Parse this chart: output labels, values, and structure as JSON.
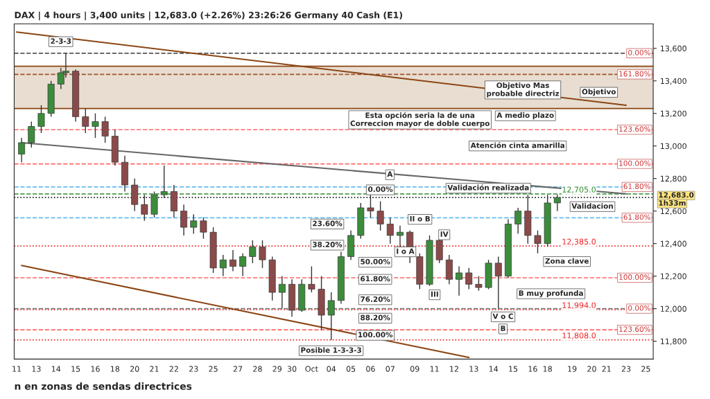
{
  "chart_data": {
    "type": "candlestick",
    "title": "DAX | 4 hours | 3,400 units | 12,683.0 (+2.26%) 23:26:26 Germany 40 Cash (E1)",
    "categories": [
      "11",
      null,
      null,
      null,
      "13",
      null,
      null,
      null,
      "14",
      null,
      null,
      null,
      "15",
      null,
      null,
      null,
      "16",
      null,
      null,
      null,
      "18",
      null,
      null,
      null,
      "20",
      null,
      null,
      null,
      "21",
      null,
      null,
      null,
      "22",
      null,
      null,
      null,
      "23",
      null,
      null,
      null,
      "25",
      null,
      null,
      null,
      null,
      "27",
      null,
      null,
      null,
      "28",
      null,
      null,
      null,
      "29",
      null,
      null,
      "30",
      null,
      null,
      null,
      "Oct",
      null,
      null,
      null,
      "04",
      null,
      null,
      null,
      "05",
      null,
      null,
      null,
      "06",
      null,
      null,
      null,
      "07",
      null,
      null,
      null,
      null,
      "09",
      null,
      null,
      null,
      "11",
      null,
      null,
      null,
      "12",
      null,
      null,
      null,
      "13",
      null,
      null,
      null,
      "14",
      null,
      null,
      null,
      "15",
      null,
      null,
      null,
      "16",
      null,
      null,
      "18",
      null,
      null,
      null,
      null,
      "19",
      null,
      null,
      null,
      "20",
      null,
      null,
      "21",
      null,
      null,
      null,
      "23",
      null,
      null,
      null,
      "25",
      null
    ],
    "ohlc": [
      null,
      [
        12950,
        13050,
        12900,
        13020
      ],
      null,
      [
        13020,
        13150,
        12990,
        13120
      ],
      null,
      [
        13120,
        13250,
        13080,
        13200
      ],
      null,
      [
        13200,
        13400,
        13180,
        13380
      ],
      null,
      [
        13380,
        13480,
        13350,
        13450
      ],
      [
        13450,
        13570,
        13420,
        13460
      ],
      null,
      [
        13460,
        13470,
        13150,
        13180
      ],
      null,
      [
        13180,
        13230,
        13080,
        13120
      ],
      null,
      [
        13120,
        13200,
        13050,
        13150
      ],
      null,
      [
        13150,
        13180,
        13020,
        13060
      ],
      null,
      [
        13060,
        13100,
        12880,
        12900
      ],
      null,
      [
        12900,
        12940,
        12720,
        12760
      ],
      null,
      [
        12760,
        12800,
        12600,
        12640
      ],
      null,
      [
        12640,
        12700,
        12540,
        12580
      ],
      null,
      [
        12580,
        12720,
        12560,
        12700
      ],
      null,
      [
        12700,
        12880,
        12680,
        12720
      ],
      null,
      [
        12720,
        12760,
        12560,
        12600
      ],
      null,
      [
        12600,
        12640,
        12450,
        12500
      ],
      null,
      [
        12500,
        12580,
        12460,
        12540
      ],
      null,
      [
        12540,
        12560,
        12430,
        12470
      ],
      null,
      [
        12470,
        12500,
        12220,
        12250
      ],
      null,
      [
        12250,
        12330,
        12200,
        12300
      ],
      null,
      [
        12300,
        12360,
        12230,
        12260
      ],
      null,
      [
        12260,
        12340,
        12200,
        12320
      ],
      null,
      [
        12320,
        12420,
        12280,
        12380
      ],
      null,
      [
        12380,
        12420,
        12250,
        12300
      ],
      null,
      [
        12300,
        12320,
        12050,
        12100
      ],
      null,
      [
        12100,
        12200,
        12000,
        12150
      ],
      null,
      [
        12150,
        12180,
        11950,
        11990
      ],
      null,
      [
        11990,
        12180,
        11980,
        12150
      ],
      null,
      [
        12150,
        12260,
        12100,
        12120
      ],
      null,
      [
        12120,
        12200,
        11870,
        11960
      ],
      null,
      [
        11960,
        12100,
        11808,
        12050
      ],
      null,
      [
        12050,
        12350,
        12030,
        12320
      ],
      null,
      [
        12320,
        12480,
        12300,
        12450
      ],
      null,
      [
        12450,
        12650,
        12430,
        12620
      ],
      null,
      [
        12620,
        12705,
        12560,
        12600
      ],
      null,
      [
        12600,
        12660,
        12480,
        12520
      ],
      null,
      [
        12520,
        12560,
        12400,
        12450
      ],
      null,
      [
        12450,
        12510,
        12380,
        12470
      ],
      null,
      [
        12470,
        12480,
        12280,
        12320
      ],
      null,
      [
        12320,
        12340,
        12120,
        12150
      ],
      null,
      [
        12150,
        12450,
        12140,
        12420
      ],
      null,
      [
        12420,
        12450,
        12280,
        12300
      ],
      null,
      [
        12300,
        12330,
        12150,
        12180
      ],
      null,
      [
        12180,
        12260,
        12080,
        12220
      ],
      null,
      [
        12220,
        12250,
        12120,
        12150
      ],
      null,
      [
        12150,
        12200,
        12110,
        12130
      ],
      null,
      [
        12130,
        12300,
        12120,
        12280
      ],
      null,
      [
        12280,
        12320,
        12000,
        12200
      ],
      null,
      [
        12200,
        12550,
        12190,
        12520
      ],
      null,
      [
        12520,
        12620,
        12460,
        12600
      ],
      null,
      [
        12600,
        12700,
        12400,
        12450
      ],
      null,
      [
        12450,
        12480,
        12340,
        12400
      ],
      null,
      [
        12400,
        12700,
        12380,
        12650
      ],
      null,
      [
        12650,
        12700,
        12600,
        12683
      ],
      null,
      null,
      null,
      null,
      null,
      null,
      null,
      null,
      null,
      null,
      null,
      null,
      null,
      null,
      null,
      null,
      null,
      null,
      null
    ],
    "colors": [
      null,
      "#3c8c3c",
      null,
      "#3c8c3c",
      null,
      "#3c8c3c",
      null,
      "#3c8c3c",
      null,
      "#3c8c3c",
      "#3c8c3c",
      null,
      "#8b4a4a",
      null,
      "#8b4a4a",
      null,
      "#3c8c3c",
      null,
      "#8b4a4a",
      null,
      "#8b4a4a",
      null,
      "#8b4a4a",
      null,
      "#8b4a4a",
      null,
      "#8b4a4a",
      null,
      "#3c8c3c",
      null,
      "#3c8c3c",
      null,
      "#8b4a4a",
      null,
      "#8b4a4a",
      null,
      "#3c8c3c",
      null,
      "#8b4a4a",
      null,
      "#8b4a4a",
      null,
      "#3c8c3c",
      null,
      "#8b4a4a",
      null,
      "#3c8c3c",
      null,
      "#3c8c3c",
      null,
      "#8b4a4a",
      null,
      "#8b4a4a",
      null,
      "#3c8c3c",
      null,
      "#8b4a4a",
      null,
      "#3c8c3c",
      null,
      "#8b4a4a",
      null,
      "#8b4a4a",
      null,
      "#3c8c3c",
      null,
      "#3c8c3c",
      null,
      "#3c8c3c",
      null,
      "#3c8c3c",
      null,
      "#8b4a4a",
      null,
      "#8b4a4a",
      null,
      "#8b4a4a",
      null,
      "#3c8c3c",
      null,
      "#8b4a4a",
      null,
      "#8b4a4a",
      null,
      "#3c8c3c",
      null,
      "#8b4a4a",
      null,
      "#8b4a4a",
      null,
      "#3c8c3c",
      null,
      "#8b4a4a",
      null,
      "#8b4a4a",
      null,
      "#3c8c3c",
      null,
      "#8b4a4a",
      null,
      "#3c8c3c",
      null,
      "#3c8c3c",
      null,
      "#8b4a4a",
      null,
      "#8b4a4a",
      null,
      "#3c8c3c",
      null,
      "#3c8c3c",
      null,
      null,
      null,
      null,
      null,
      null,
      null,
      null,
      null,
      null,
      null,
      null,
      null,
      null,
      null,
      null,
      null,
      null,
      null
    ],
    "series": [
      {
        "type": "line",
        "color": "#8b4513",
        "values": [
          13700,
          null,
          null,
          null,
          null,
          null,
          null,
          null,
          null,
          null,
          null,
          null,
          null,
          null,
          null,
          null,
          null,
          null,
          null,
          null,
          null,
          null,
          null,
          null,
          null,
          null,
          null,
          null,
          null,
          null,
          null,
          null,
          null,
          null,
          null,
          null,
          null,
          null,
          null,
          null,
          null,
          null,
          null,
          null,
          null,
          null,
          null,
          null,
          null,
          null,
          null,
          null,
          null,
          null,
          null,
          null,
          null,
          null,
          null,
          null,
          null,
          null,
          null,
          null,
          null,
          null,
          null,
          null,
          null,
          null,
          null,
          null,
          null,
          null,
          null,
          null,
          null,
          null,
          null,
          null,
          null,
          null,
          null,
          null,
          null,
          null,
          null,
          null,
          null,
          null,
          null,
          null,
          null,
          null,
          null,
          null,
          null,
          null,
          null,
          null,
          null,
          null,
          null,
          null,
          null,
          null,
          null,
          null,
          null,
          null,
          null,
          null,
          null,
          null,
          null,
          null,
          null,
          null,
          null,
          null,
          null,
          null,
          null,
          null,
          13250,
          null,
          null,
          null,
          null,
          null
        ]
      },
      {
        "type": "line",
        "color": "#8b4513",
        "values": [
          null,
          12265,
          null,
          null,
          null,
          null,
          null,
          null,
          null,
          null,
          null,
          null,
          null,
          null,
          null,
          null,
          null,
          null,
          null,
          null,
          null,
          null,
          null,
          null,
          null,
          null,
          null,
          null,
          null,
          null,
          null,
          null,
          null,
          null,
          null,
          null,
          null,
          null,
          null,
          null,
          null,
          null,
          null,
          null,
          null,
          null,
          null,
          null,
          null,
          null,
          null,
          null,
          null,
          null,
          null,
          null,
          null,
          null,
          null,
          null,
          null,
          null,
          null,
          null,
          null,
          null,
          null,
          null,
          null,
          null,
          null,
          null,
          null,
          null,
          null,
          null,
          null,
          null,
          null,
          null,
          null,
          null,
          null,
          null,
          null,
          null,
          null,
          null,
          null,
          null,
          null,
          null,
          11700,
          null,
          null,
          null,
          null,
          null,
          null,
          null,
          null,
          null,
          null,
          null,
          null,
          null,
          null,
          null,
          null,
          null,
          null,
          null,
          null,
          null,
          null,
          null,
          null,
          null,
          null,
          null,
          null,
          null,
          null,
          null,
          null,
          null,
          null,
          null,
          null,
          null
        ]
      },
      {
        "type": "line",
        "color": "#666666",
        "values": [
          null,
          13020,
          null,
          null,
          null,
          null,
          null,
          null,
          null,
          null,
          null,
          null,
          null,
          null,
          null,
          null,
          null,
          null,
          null,
          null,
          null,
          null,
          null,
          null,
          null,
          null,
          null,
          null,
          null,
          null,
          null,
          null,
          null,
          null,
          null,
          null,
          null,
          null,
          null,
          null,
          null,
          null,
          null,
          null,
          null,
          null,
          null,
          null,
          null,
          null,
          null,
          null,
          null,
          null,
          null,
          null,
          null,
          null,
          null,
          null,
          null,
          null,
          null,
          null,
          null,
          null,
          null,
          null,
          null,
          null,
          null,
          null,
          null,
          null,
          null,
          null,
          null,
          null,
          null,
          null,
          null,
          null,
          null,
          null,
          null,
          null,
          null,
          null,
          null,
          null,
          null,
          null,
          null,
          null,
          null,
          null,
          null,
          null,
          null,
          null,
          null,
          null,
          null,
          null,
          null,
          null,
          null,
          null,
          null,
          null,
          null,
          null,
          null,
          null,
          null,
          null,
          null,
          null,
          null,
          null,
          null,
          null,
          null,
          null,
          12706,
          null,
          null,
          null,
          null,
          null
        ]
      }
    ],
    "ylim": [
      11690,
      13750
    ],
    "yticks": [
      {
        "value": 11800,
        "label": "11,800"
      },
      {
        "value": 12000,
        "label": "12,000"
      },
      {
        "value": 12200,
        "label": "12,200"
      },
      {
        "value": 12400,
        "label": "12,400"
      },
      {
        "value": 12600,
        "label": "12,600"
      },
      {
        "value": 12800,
        "label": "12,800"
      },
      {
        "value": 13000,
        "label": "13,000"
      },
      {
        "value": 13200,
        "label": "13,200"
      },
      {
        "value": 13400,
        "label": "13,400"
      },
      {
        "value": 13600,
        "label": "13,600"
      }
    ],
    "bands": [
      {
        "axis": "y",
        "from": 13230,
        "to": 13490,
        "color": "#e8ddd0"
      }
    ],
    "ref_lines": [
      {
        "axis": "y",
        "value": 13490,
        "color": "#8b4513",
        "line_style": "solid"
      },
      {
        "axis": "y",
        "value": 13230,
        "color": "#8b4513",
        "line_style": "solid"
      },
      {
        "axis": "y",
        "value": 13570,
        "color": "#555555",
        "line_style": "dashed"
      },
      {
        "axis": "y",
        "value": 13440,
        "color": "#a0522d",
        "line_style": "dashed"
      },
      {
        "axis": "y",
        "value": 13100,
        "color": "#ff6666",
        "line_style": "dashed"
      },
      {
        "axis": "y",
        "value": 12890,
        "color": "#ff6666",
        "line_style": "dashed"
      },
      {
        "axis": "y",
        "value": 12748,
        "color": "#66bbee",
        "line_style": "dashed"
      },
      {
        "axis": "y",
        "value": 12705,
        "label": "12,705.0",
        "color": "#2e8b2e",
        "line_style": "dashed"
      },
      {
        "axis": "y",
        "value": 12683,
        "color": "#222222",
        "line_style": "dotted"
      },
      {
        "axis": "y",
        "value": 12559,
        "color": "#66bbee",
        "line_style": "dashed"
      },
      {
        "axis": "y",
        "value": 12385,
        "label": "12,385.0",
        "color": "#ee2222",
        "line_style": "dotted"
      },
      {
        "axis": "y",
        "value": 12190,
        "color": "#ff6666",
        "line_style": "dashed"
      },
      {
        "axis": "y",
        "value": 12000,
        "color": "#777777",
        "line_style": "dashed"
      },
      {
        "axis": "y",
        "value": 11994,
        "label": "11,994.0",
        "color": "#ee2222",
        "line_style": "dotted"
      },
      {
        "axis": "y",
        "value": 11870,
        "color": "#ff6666",
        "line_style": "dashed"
      },
      {
        "axis": "y",
        "value": 11808,
        "label": "11,808.0",
        "color": "#ee2222",
        "line_style": "dotted"
      }
    ],
    "annotations": [
      {
        "text": "0.00%",
        "y": 13570
      },
      {
        "text": "161.80%",
        "y": 13440
      },
      {
        "text": "123.60%",
        "y": 13100
      },
      {
        "text": "100.00%",
        "y": 12890
      },
      {
        "text": "61.80%",
        "y": 12748
      },
      {
        "text": "61.80%",
        "y": 12559
      },
      {
        "text": "100.00%",
        "y": 12190
      },
      {
        "text": "0.00%",
        "y": 12000
      },
      {
        "text": "123.60%",
        "y": 11870
      },
      "2-3-3",
      "Objetivo Mas\nprobable directriz",
      "Objetivo",
      "A medio plazo",
      "Esta opción seria la de una\nCorreccion mayor de doble cuerpo",
      "Atención cinta amarilla",
      "A",
      "0.00%",
      "Validación realizada",
      "Validacion",
      "23.60%",
      "38.20%",
      "50.00%",
      "61.80%",
      "76.20%",
      "88.20%",
      "100.00%",
      "II o B",
      "I o A",
      "IV",
      "III",
      "B muy profunda",
      "V o C",
      "B",
      "Zona clave",
      "Posible 1-3-3-3",
      "n en zonas de sendas directrices",
      "12,683.0",
      "1h33m"
    ],
    "grid": false,
    "legend": false
  }
}
